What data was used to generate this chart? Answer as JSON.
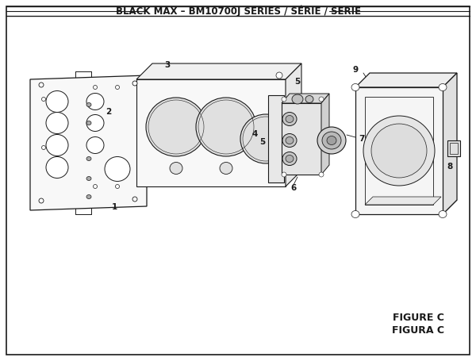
{
  "title": "BLACK MAX – BM10700J SERIES / SÉRIE / SERIE",
  "figure_label": "FIGURE C",
  "figura_label": "FIGURA C",
  "bg_color": "#ffffff",
  "line_color": "#1a1a1a",
  "title_fontsize": 8.5,
  "label_fontsize": 7.5,
  "figure_fontsize": 9
}
